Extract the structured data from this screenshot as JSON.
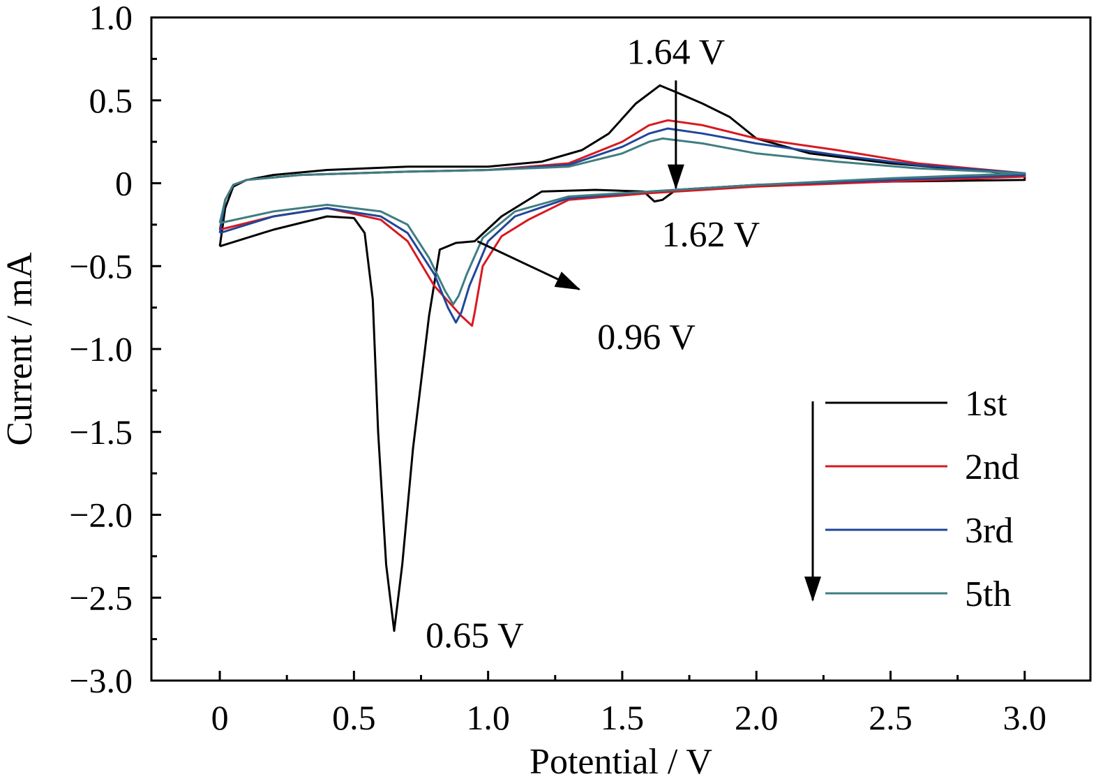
{
  "chart_data": {
    "type": "line",
    "title": "",
    "xlabel": "Potential / V",
    "ylabel": "Current / mA",
    "xlim": [
      -0.255,
      3.245
    ],
    "ylim": [
      -3.0,
      1.0
    ],
    "xticks": [
      0,
      0.5,
      1.0,
      1.5,
      2.0,
      2.5,
      3.0
    ],
    "xtick_labels": [
      "0",
      "0.5",
      "1.0",
      "1.5",
      "2.0",
      "2.5",
      "3.0"
    ],
    "yticks": [
      1.0,
      0.5,
      0,
      -0.5,
      -1.0,
      -1.5,
      -2.0,
      -2.5,
      -3.0
    ],
    "ytick_labels": [
      "1.0",
      "0.5",
      "0",
      "−0.5",
      "−1.0",
      "−1.5",
      "−2.0",
      "−2.5",
      "−3.0"
    ],
    "grid": false,
    "legend_position": "bottom-right",
    "series": [
      {
        "name": "1st",
        "color": "#000000",
        "x": [
          0,
          0.02,
          0.05,
          0.1,
          0.2,
          0.4,
          0.7,
          1.0,
          1.2,
          1.35,
          1.45,
          1.55,
          1.64,
          1.7,
          1.8,
          1.9,
          2.0,
          2.2,
          2.5,
          2.8,
          3.0,
          3.0,
          2.5,
          2.0,
          1.7,
          1.65,
          1.62,
          1.58,
          1.4,
          1.2,
          1.05,
          0.95,
          0.88,
          0.82,
          0.78,
          0.72,
          0.68,
          0.65,
          0.62,
          0.59,
          0.57,
          0.54,
          0.5,
          0.4,
          0.2,
          0
        ],
        "y": [
          -0.38,
          -0.15,
          -0.02,
          0.02,
          0.05,
          0.08,
          0.1,
          0.1,
          0.13,
          0.2,
          0.3,
          0.48,
          0.59,
          0.55,
          0.48,
          0.4,
          0.27,
          0.18,
          0.12,
          0.08,
          0.05,
          0.02,
          0.01,
          -0.01,
          -0.04,
          -0.1,
          -0.11,
          -0.05,
          -0.04,
          -0.05,
          -0.2,
          -0.35,
          -0.36,
          -0.4,
          -0.8,
          -1.6,
          -2.3,
          -2.7,
          -2.3,
          -1.5,
          -0.7,
          -0.3,
          -0.21,
          -0.2,
          -0.28,
          -0.38
        ]
      },
      {
        "name": "2nd",
        "color": "#d7191f",
        "x": [
          0,
          0.02,
          0.05,
          0.1,
          0.3,
          0.7,
          1.0,
          1.3,
          1.5,
          1.6,
          1.67,
          1.8,
          2.0,
          2.3,
          2.6,
          3.0,
          3.0,
          2.5,
          2.0,
          1.6,
          1.3,
          1.15,
          1.05,
          0.98,
          0.95,
          0.94,
          0.9,
          0.8,
          0.7,
          0.6,
          0.4,
          0.2,
          0
        ],
        "y": [
          -0.28,
          -0.1,
          -0.01,
          0.02,
          0.05,
          0.07,
          0.08,
          0.12,
          0.25,
          0.35,
          0.38,
          0.35,
          0.27,
          0.2,
          0.12,
          0.06,
          0.04,
          0.01,
          -0.02,
          -0.06,
          -0.1,
          -0.22,
          -0.32,
          -0.5,
          -0.78,
          -0.86,
          -0.8,
          -0.62,
          -0.35,
          -0.22,
          -0.15,
          -0.2,
          -0.28
        ]
      },
      {
        "name": "3rd",
        "color": "#1f4699",
        "x": [
          0,
          0.02,
          0.05,
          0.1,
          0.3,
          0.7,
          1.0,
          1.3,
          1.5,
          1.6,
          1.67,
          1.8,
          2.0,
          2.3,
          2.6,
          3.0,
          3.0,
          2.5,
          2.0,
          1.6,
          1.3,
          1.1,
          1.0,
          0.93,
          0.9,
          0.88,
          0.85,
          0.8,
          0.7,
          0.6,
          0.4,
          0.2,
          0
        ],
        "y": [
          -0.3,
          -0.1,
          -0.01,
          0.02,
          0.05,
          0.07,
          0.08,
          0.11,
          0.22,
          0.3,
          0.33,
          0.3,
          0.24,
          0.17,
          0.11,
          0.06,
          0.05,
          0.02,
          -0.01,
          -0.05,
          -0.09,
          -0.2,
          -0.35,
          -0.62,
          -0.78,
          -0.84,
          -0.75,
          -0.55,
          -0.3,
          -0.2,
          -0.15,
          -0.2,
          -0.3
        ]
      },
      {
        "name": "5th",
        "color": "#407d80",
        "x": [
          0,
          0.02,
          0.05,
          0.1,
          0.3,
          0.7,
          1.0,
          1.3,
          1.5,
          1.6,
          1.65,
          1.8,
          2.0,
          2.3,
          2.6,
          3.0,
          3.0,
          2.5,
          2.0,
          1.6,
          1.3,
          1.1,
          0.98,
          0.92,
          0.89,
          0.87,
          0.84,
          0.78,
          0.7,
          0.6,
          0.4,
          0.2,
          0
        ],
        "y": [
          -0.24,
          -0.1,
          -0.01,
          0.02,
          0.05,
          0.07,
          0.08,
          0.1,
          0.18,
          0.25,
          0.27,
          0.24,
          0.18,
          0.13,
          0.09,
          0.06,
          0.06,
          0.03,
          -0.01,
          -0.05,
          -0.08,
          -0.17,
          -0.33,
          -0.55,
          -0.68,
          -0.73,
          -0.65,
          -0.45,
          -0.25,
          -0.17,
          -0.13,
          -0.17,
          -0.24
        ]
      }
    ],
    "annotations": [
      {
        "text": "1.64 V",
        "x": 1.7,
        "y": 0.72
      },
      {
        "text": "1.62 V",
        "x": 1.83,
        "y": -0.38
      },
      {
        "text": "0.96 V",
        "x": 1.59,
        "y": -1.0
      },
      {
        "text": "0.65 V",
        "x": 0.95,
        "y": -2.8
      }
    ],
    "arrows": [
      {
        "from": [
          1.7,
          0.62
        ],
        "to": [
          1.7,
          -0.03
        ]
      },
      {
        "from": [
          0.96,
          -0.35
        ],
        "to": [
          1.34,
          -0.64
        ]
      }
    ]
  }
}
